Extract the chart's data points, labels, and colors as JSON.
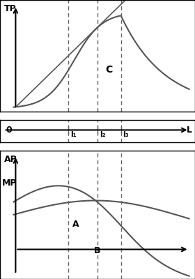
{
  "fig_width": 2.8,
  "fig_height": 4.0,
  "dpi": 100,
  "background_color": "#ffffff",
  "border_color": "#000000",
  "vline_color": "#666666",
  "curve_color": "#555555",
  "vline_positions": [
    0.35,
    0.5,
    0.62
  ],
  "vline_labels": [
    "l₁",
    "l₂",
    "l₃"
  ],
  "tp_label": "TP",
  "ap_label": "AP",
  "mp_label": "MP",
  "axis_label_L": "L",
  "axis_label_0": "0",
  "label_C": "C",
  "label_A": "A",
  "label_B": "B"
}
